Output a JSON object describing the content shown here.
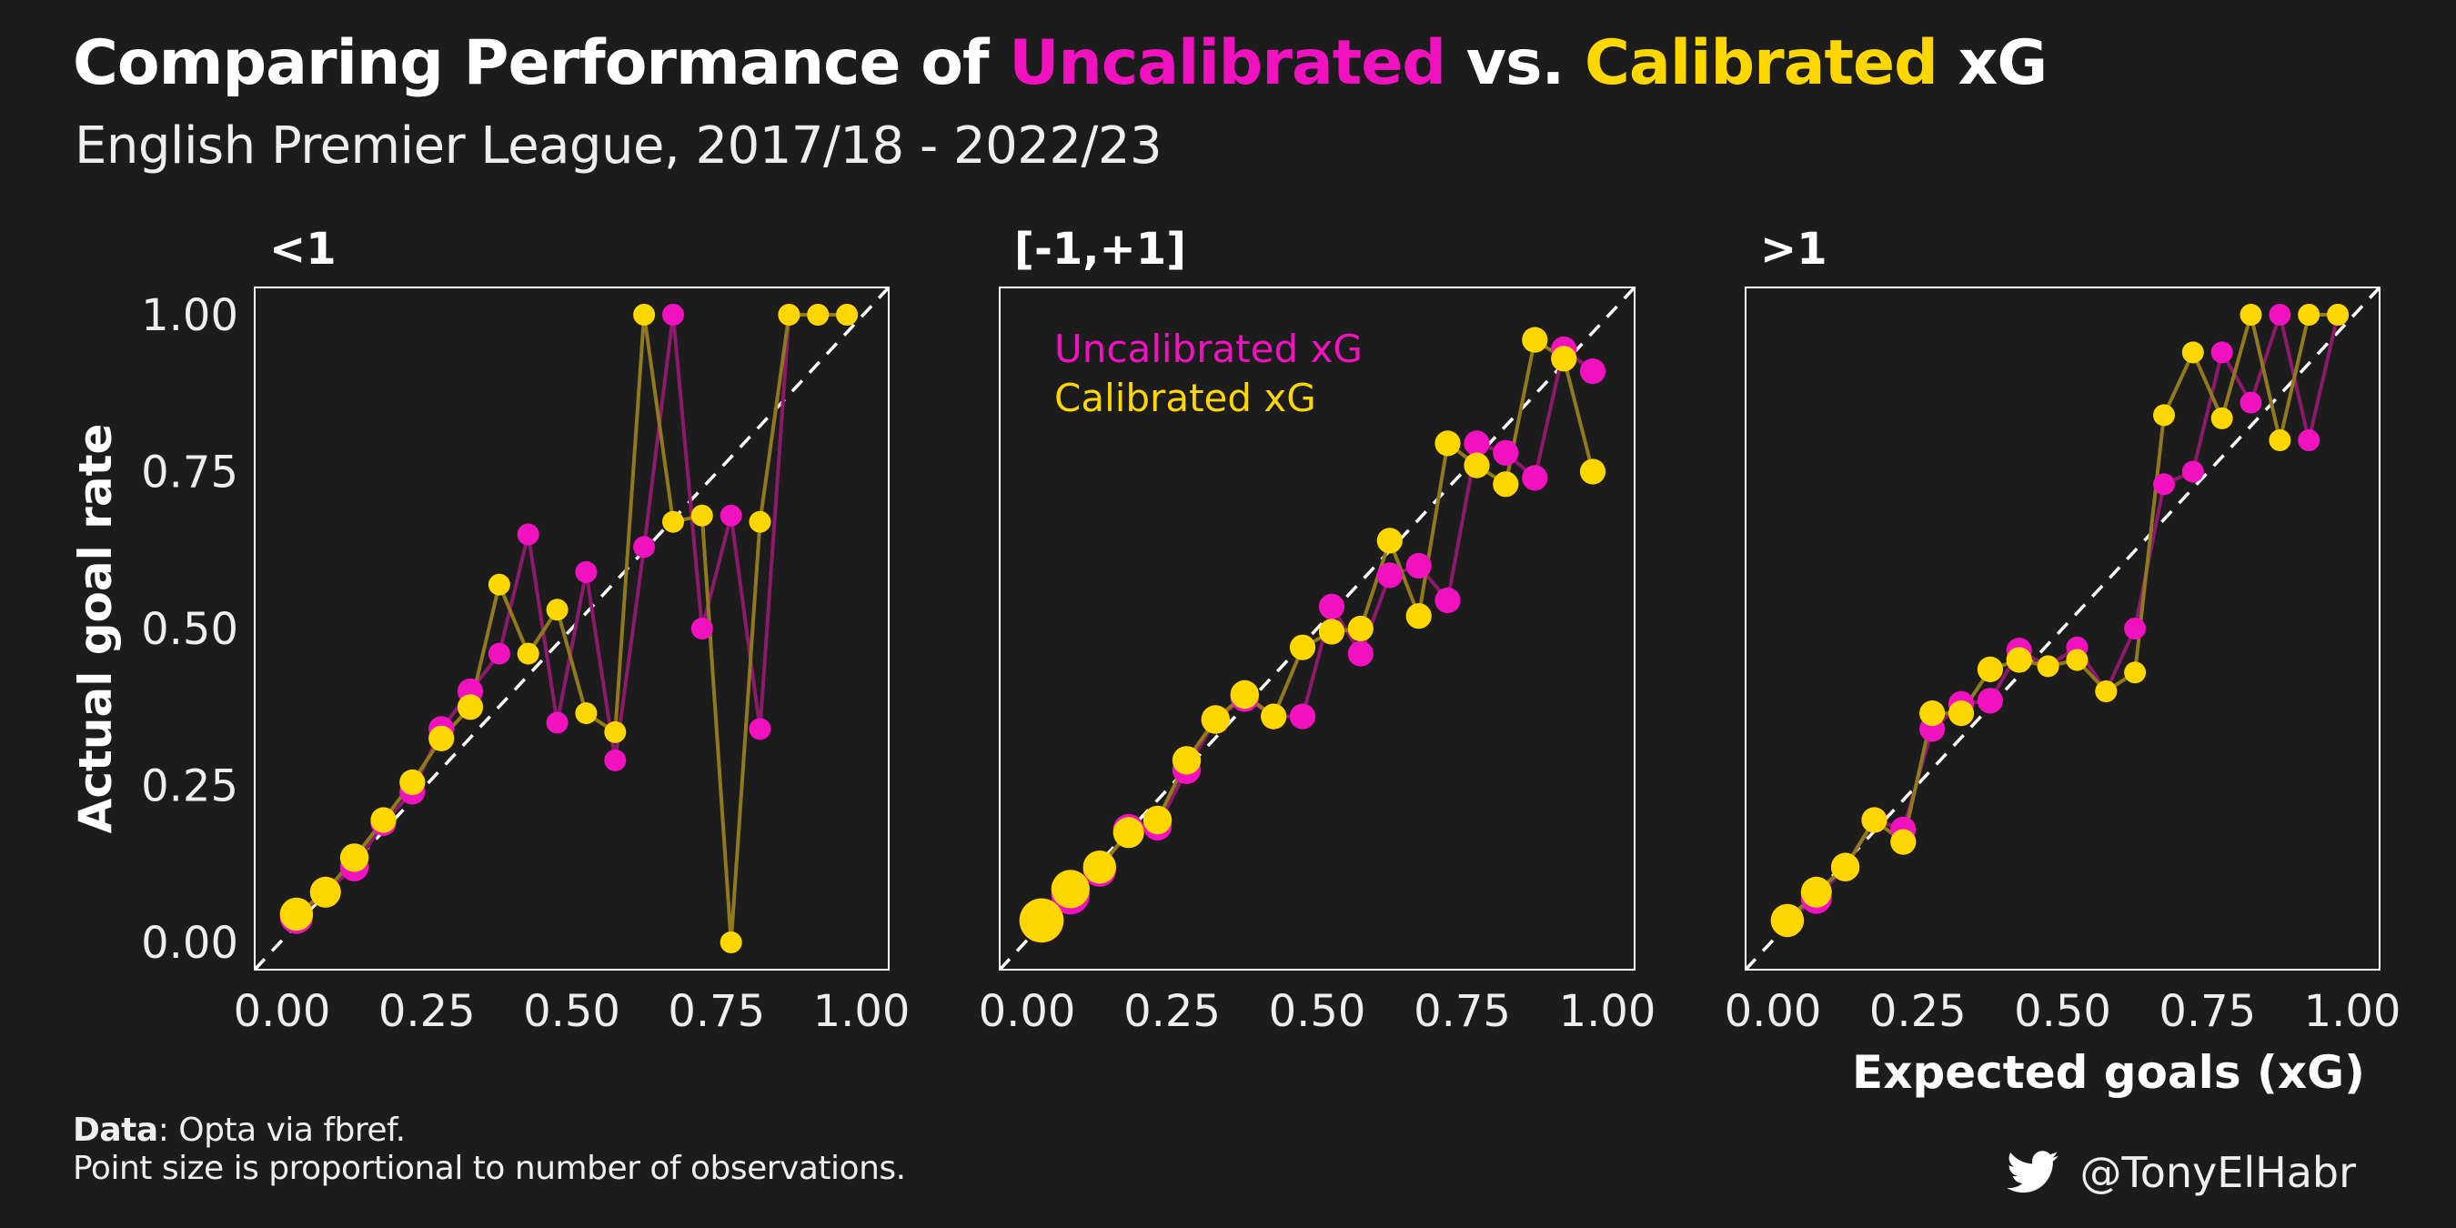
{
  "header": {
    "title_pre": "Comparing Performance of ",
    "title_uncal": "Uncalibrated",
    "title_mid": " vs. ",
    "title_cal": "Calibrated",
    "title_post": " xG",
    "subtitle": "English Premier League, 2017/18 - 2022/23"
  },
  "footer": {
    "data_label": "Data",
    "data_text": ": Opta via fbref.",
    "note": "Point size is proportional to number of observations.",
    "credit": "@TonyElHabr",
    "credit_icon": "twitter-bird-icon"
  },
  "colors": {
    "background": "#1c1c1c",
    "uncalibrated": "#f012be",
    "calibrated": "#ffd700",
    "uncalibrated_line": "#8b1a6b",
    "calibrated_line": "#8f7a1e",
    "text": "#ffffff"
  },
  "chart_data": [
    {
      "type": "line",
      "facet": "<1",
      "xlabel": "",
      "ylabel": "Actual goal rate",
      "xlim": [
        0,
        1
      ],
      "ylim": [
        0,
        1
      ],
      "xticks": [
        "0.00",
        "0.25",
        "0.50",
        "0.75",
        "1.00"
      ],
      "yticks": [
        "0.00",
        "0.25",
        "0.50",
        "0.75",
        "1.00"
      ],
      "reference_line": "y = x (dashed)",
      "legend": null,
      "series": [
        {
          "name": "Uncalibrated xG",
          "x": [
            0.025,
            0.075,
            0.125,
            0.175,
            0.225,
            0.275,
            0.325,
            0.375,
            0.425,
            0.475,
            0.525,
            0.575,
            0.625,
            0.675,
            0.725,
            0.775,
            0.825,
            0.875,
            0.925,
            0.975
          ],
          "y": [
            0.04,
            0.08,
            0.12,
            0.19,
            0.24,
            0.34,
            0.4,
            0.46,
            0.65,
            0.35,
            0.59,
            0.29,
            0.63,
            1.0,
            0.5,
            0.68,
            0.34,
            1.0,
            1.0,
            1.0
          ],
          "size": [
            5,
            4,
            3,
            2,
            2,
            2,
            2,
            1,
            1,
            1,
            1,
            1,
            1,
            1,
            1,
            1,
            1,
            1,
            1,
            1
          ]
        },
        {
          "name": "Calibrated xG",
          "x": [
            0.025,
            0.075,
            0.125,
            0.175,
            0.225,
            0.275,
            0.325,
            0.375,
            0.425,
            0.475,
            0.525,
            0.575,
            0.625,
            0.675,
            0.725,
            0.775,
            0.825,
            0.875,
            0.925,
            0.975
          ],
          "y": [
            0.045,
            0.08,
            0.135,
            0.195,
            0.255,
            0.325,
            0.375,
            0.57,
            0.46,
            0.53,
            0.365,
            0.335,
            1.0,
            0.67,
            0.68,
            0.0,
            0.67,
            1.0,
            1.0,
            1.0
          ],
          "size": [
            5,
            4,
            3,
            2,
            2,
            2,
            2,
            1,
            1,
            1,
            1,
            1,
            1,
            1,
            1,
            1,
            1,
            1,
            1,
            1
          ]
        }
      ]
    },
    {
      "type": "line",
      "facet": "[-1,+1]",
      "xlabel": "",
      "ylabel": "",
      "xlim": [
        0,
        1
      ],
      "ylim": [
        0,
        1
      ],
      "xticks": [
        "0.00",
        "0.25",
        "0.50",
        "0.75",
        "1.00"
      ],
      "yticks": [],
      "reference_line": "y = x (dashed)",
      "legend": "top-left",
      "series": [
        {
          "name": "Uncalibrated xG",
          "x": [
            0.025,
            0.075,
            0.125,
            0.175,
            0.225,
            0.275,
            0.325,
            0.375,
            0.425,
            0.475,
            0.525,
            0.575,
            0.625,
            0.675,
            0.725,
            0.775,
            0.825,
            0.875,
            0.925,
            0.975
          ],
          "y": [
            0.035,
            0.075,
            0.115,
            0.18,
            0.185,
            0.275,
            0.355,
            0.39,
            0.36,
            0.36,
            0.535,
            0.46,
            0.585,
            0.6,
            0.545,
            0.795,
            0.78,
            0.74,
            0.945,
            0.91
          ],
          "size": [
            12,
            8,
            5,
            4,
            3,
            3,
            3,
            3,
            2,
            2,
            2,
            2,
            2,
            2,
            2,
            2,
            2,
            2,
            2,
            2
          ]
        },
        {
          "name": "Calibrated xG",
          "x": [
            0.025,
            0.075,
            0.125,
            0.175,
            0.225,
            0.275,
            0.325,
            0.375,
            0.425,
            0.475,
            0.525,
            0.575,
            0.625,
            0.675,
            0.725,
            0.775,
            0.825,
            0.875,
            0.925,
            0.975
          ],
          "y": [
            0.035,
            0.085,
            0.12,
            0.175,
            0.195,
            0.29,
            0.355,
            0.395,
            0.36,
            0.47,
            0.495,
            0.5,
            0.64,
            0.52,
            0.795,
            0.76,
            0.73,
            0.96,
            0.93,
            0.75
          ],
          "size": [
            12,
            8,
            5,
            4,
            3,
            3,
            3,
            3,
            2,
            2,
            2,
            2,
            2,
            2,
            2,
            2,
            2,
            2,
            2,
            2
          ]
        }
      ]
    },
    {
      "type": "line",
      "facet": ">1",
      "xlabel": "Expected goals (xG)",
      "ylabel": "",
      "xlim": [
        0,
        1
      ],
      "ylim": [
        0,
        1
      ],
      "xticks": [
        "0.00",
        "0.25",
        "0.50",
        "0.75",
        "1.00"
      ],
      "yticks": [],
      "reference_line": "y = x (dashed)",
      "legend": null,
      "series": [
        {
          "name": "Uncalibrated xG",
          "x": [
            0.025,
            0.075,
            0.125,
            0.175,
            0.225,
            0.275,
            0.325,
            0.375,
            0.425,
            0.475,
            0.525,
            0.575,
            0.625,
            0.675,
            0.725,
            0.775,
            0.825,
            0.875,
            0.925,
            0.975
          ],
          "y": [
            0.035,
            0.07,
            0.12,
            0.195,
            0.18,
            0.34,
            0.38,
            0.385,
            0.465,
            0.44,
            0.47,
            0.4,
            0.5,
            0.73,
            0.75,
            0.94,
            0.86,
            1.0,
            0.8,
            1.0
          ],
          "size": [
            5,
            4,
            3,
            2,
            2,
            2,
            2,
            2,
            2,
            1,
            1,
            1,
            1,
            1,
            1,
            1,
            1,
            1,
            1,
            1
          ]
        },
        {
          "name": "Calibrated xG",
          "x": [
            0.025,
            0.075,
            0.125,
            0.175,
            0.225,
            0.275,
            0.325,
            0.375,
            0.425,
            0.475,
            0.525,
            0.575,
            0.625,
            0.675,
            0.725,
            0.775,
            0.825,
            0.875,
            0.925,
            0.975
          ],
          "y": [
            0.035,
            0.08,
            0.12,
            0.195,
            0.16,
            0.365,
            0.365,
            0.435,
            0.45,
            0.44,
            0.45,
            0.4,
            0.43,
            0.84,
            0.94,
            0.835,
            1.0,
            0.8,
            1.0,
            1.0
          ],
          "size": [
            5,
            4,
            3,
            2,
            2,
            2,
            2,
            2,
            2,
            1,
            1,
            1,
            1,
            1,
            1,
            1,
            1,
            1,
            1,
            1
          ]
        }
      ]
    }
  ]
}
